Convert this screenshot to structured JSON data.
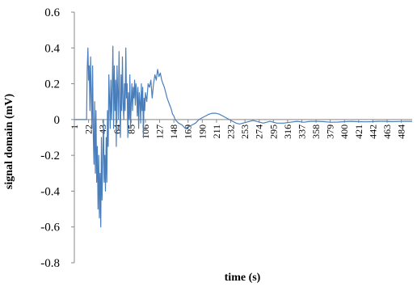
{
  "chart_data": {
    "type": "line",
    "title": "",
    "xlabel": "time (s)",
    "ylabel": "signal domain (mV)",
    "ylim": [
      -0.8,
      0.6
    ],
    "y_ticks": [
      "0.6",
      "0.4",
      "0.2",
      "0",
      "-0.2",
      "-0.4",
      "-0.6",
      "-0.8"
    ],
    "x_tick_labels": [
      "1",
      "22",
      "43",
      "64",
      "85",
      "106",
      "127",
      "148",
      "169",
      "190",
      "211",
      "232",
      "253",
      "274",
      "295",
      "316",
      "337",
      "358",
      "379",
      "400",
      "421",
      "442",
      "463",
      "484"
    ],
    "x_range": [
      1,
      500
    ],
    "grid": false,
    "legend": "none",
    "line_color": "#4a7ebb",
    "series": [
      {
        "x": [
          1,
          19,
          20,
          21,
          22,
          23,
          24,
          25,
          26,
          27,
          28,
          29,
          30,
          31,
          32,
          33,
          34,
          35,
          36,
          37,
          38,
          39,
          40,
          41,
          42,
          43,
          44,
          45,
          46,
          47,
          48,
          49,
          50,
          51,
          52,
          53,
          54,
          55,
          56,
          57,
          58,
          59,
          60,
          61,
          62,
          63,
          64,
          65,
          66,
          67,
          68,
          69,
          70,
          71,
          72,
          73,
          74,
          75,
          76,
          77,
          78,
          79,
          80,
          81,
          82,
          83,
          84,
          85,
          86,
          87,
          88,
          89,
          90,
          91,
          92,
          93,
          94,
          95,
          96,
          97,
          98,
          99,
          100,
          101,
          102,
          103,
          104,
          105,
          106,
          108,
          110,
          112,
          114,
          116,
          118,
          120,
          122,
          124,
          126,
          128,
          130,
          132,
          134,
          136,
          138,
          140,
          142,
          144,
          146,
          148,
          150,
          155,
          160,
          165,
          170,
          175,
          180,
          185,
          190,
          195,
          200,
          205,
          210,
          215,
          220,
          225,
          230,
          235,
          240,
          245,
          250,
          255,
          260,
          265,
          270,
          275,
          280,
          285,
          290,
          295,
          300,
          310,
          320,
          330,
          340,
          350,
          360,
          370,
          380,
          390,
          400,
          410,
          420,
          430,
          440,
          450,
          460,
          470,
          480,
          490,
          500
        ],
        "y": [
          0,
          0,
          0.28,
          0.4,
          0.22,
          0.3,
          0.05,
          0.35,
          0.15,
          -0.05,
          0.3,
          -0.1,
          -0.25,
          0.1,
          -0.3,
          0.05,
          -0.35,
          -0.15,
          -0.5,
          -0.2,
          -0.55,
          -0.3,
          -0.6,
          -0.1,
          -0.45,
          -0.2,
          0.0,
          -0.35,
          -0.2,
          -0.4,
          -0.1,
          -0.35,
          0.05,
          -0.15,
          0.25,
          0.1,
          -0.05,
          0.22,
          0.0,
          0.18,
          0.41,
          -0.05,
          0.3,
          0.05,
          0.22,
          -0.15,
          0.3,
          0.15,
          0.0,
          0.38,
          0.1,
          -0.1,
          0.25,
          0.05,
          0.35,
          0.1,
          0.0,
          0.2,
          0.05,
          0.4,
          0.12,
          0.2,
          -0.1,
          0.15,
          0.0,
          0.25,
          -0.05,
          0.1,
          0.2,
          0.05,
          0.18,
          0.12,
          0.22,
          0.08,
          0.2,
          0.15,
          0.02,
          0.18,
          -0.05,
          0.15,
          0.1,
          -0.02,
          0.2,
          0.05,
          0.18,
          -0.1,
          0.12,
          0.05,
          0.15,
          0.1,
          0.2,
          0.18,
          0.22,
          0.12,
          0.2,
          0.25,
          0.22,
          0.28,
          0.24,
          0.26,
          0.22,
          0.2,
          0.18,
          0.15,
          0.12,
          0.1,
          0.08,
          0.06,
          0.03,
          0.02,
          0.0,
          -0.02,
          -0.03,
          -0.05,
          -0.04,
          -0.03,
          -0.02,
          0.0,
          0.01,
          0.02,
          0.03,
          0.035,
          0.035,
          0.03,
          0.02,
          0.01,
          0.0,
          -0.01,
          -0.02,
          -0.025,
          -0.02,
          -0.015,
          -0.01,
          -0.005,
          -0.01,
          -0.015,
          -0.02,
          -0.015,
          -0.01,
          -0.015,
          -0.02,
          -0.02,
          -0.015,
          -0.01,
          -0.015,
          -0.01,
          -0.01,
          -0.012,
          -0.015,
          -0.014,
          -0.012,
          -0.01,
          -0.012,
          -0.013,
          -0.012,
          -0.01,
          -0.01,
          -0.012,
          -0.011,
          -0.01,
          -0.01
        ]
      }
    ]
  }
}
